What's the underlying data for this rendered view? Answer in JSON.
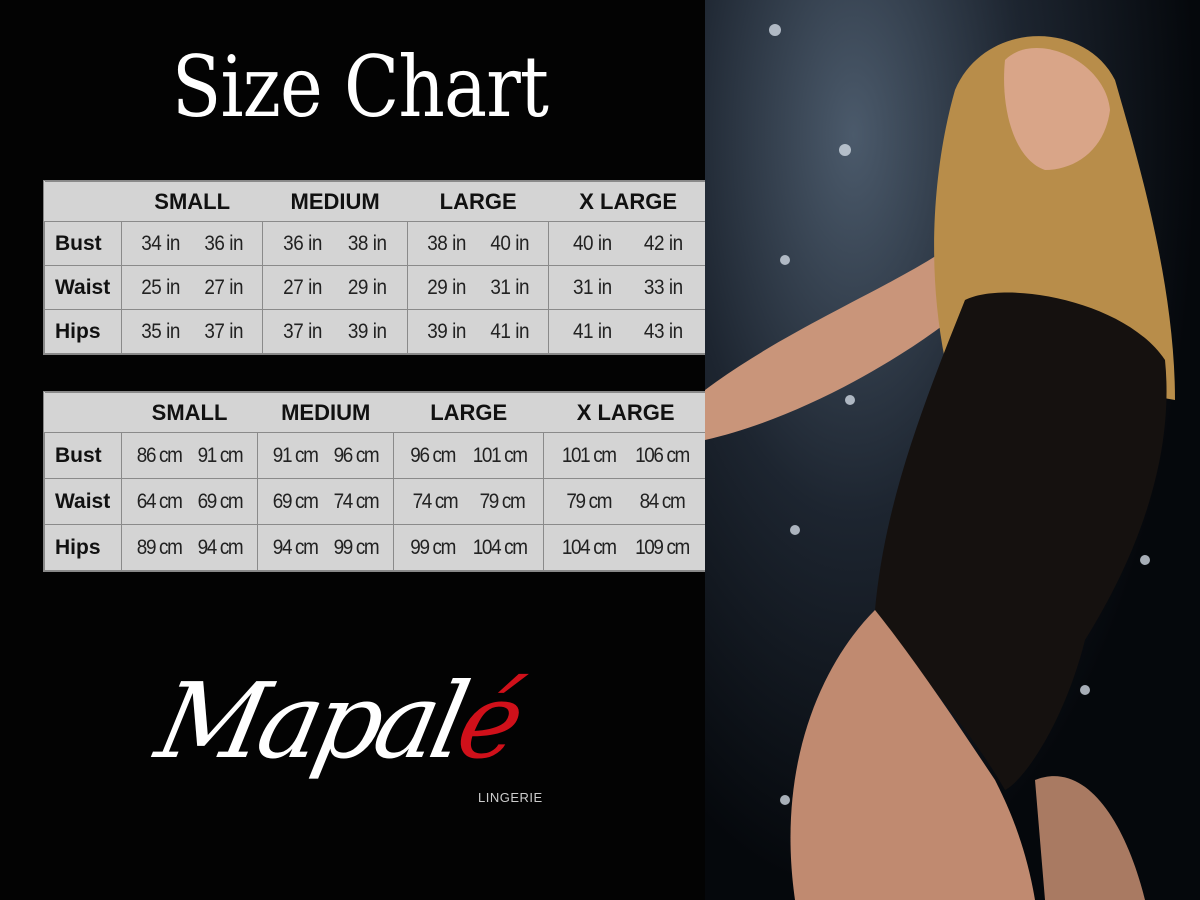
{
  "title": "Size Chart",
  "sizes": [
    "SMALL",
    "MEDIUM",
    "LARGE",
    "X LARGE"
  ],
  "inches_table": {
    "rows": [
      {
        "label": "Bust",
        "values": [
          "34 in",
          "36 in",
          "36 in",
          "38 in",
          "38 in",
          "40 in",
          "40 in",
          "42 in"
        ]
      },
      {
        "label": "Waist",
        "values": [
          "25 in",
          "27 in",
          "27 in",
          "29 in",
          "29 in",
          "31 in",
          "31 in",
          "33 in"
        ]
      },
      {
        "label": "Hips",
        "values": [
          "35 in",
          "37 in",
          "37 in",
          "39 in",
          "39 in",
          "41 in",
          "41 in",
          "43 in"
        ]
      }
    ]
  },
  "cm_table": {
    "rows": [
      {
        "label": "Bust",
        "values": [
          "86 cm",
          "91 cm",
          "91 cm",
          "96 cm",
          "96 cm",
          "101 cm",
          "101 cm",
          "106 cm"
        ]
      },
      {
        "label": "Waist",
        "values": [
          "64 cm",
          "69 cm",
          "69 cm",
          "74 cm",
          "74 cm",
          "79 cm",
          "79 cm",
          "84 cm"
        ]
      },
      {
        "label": "Hips",
        "values": [
          "89 cm",
          "94 cm",
          "94 cm",
          "99 cm",
          "99 cm",
          "104 cm",
          "104 cm",
          "109 cm"
        ]
      }
    ]
  },
  "logo": {
    "text": "Mapalé",
    "subtitle": "LINGERIE",
    "accent_color": "#d0101a"
  },
  "colors": {
    "background": "#030303",
    "table_bg": "#d4d4d4"
  }
}
